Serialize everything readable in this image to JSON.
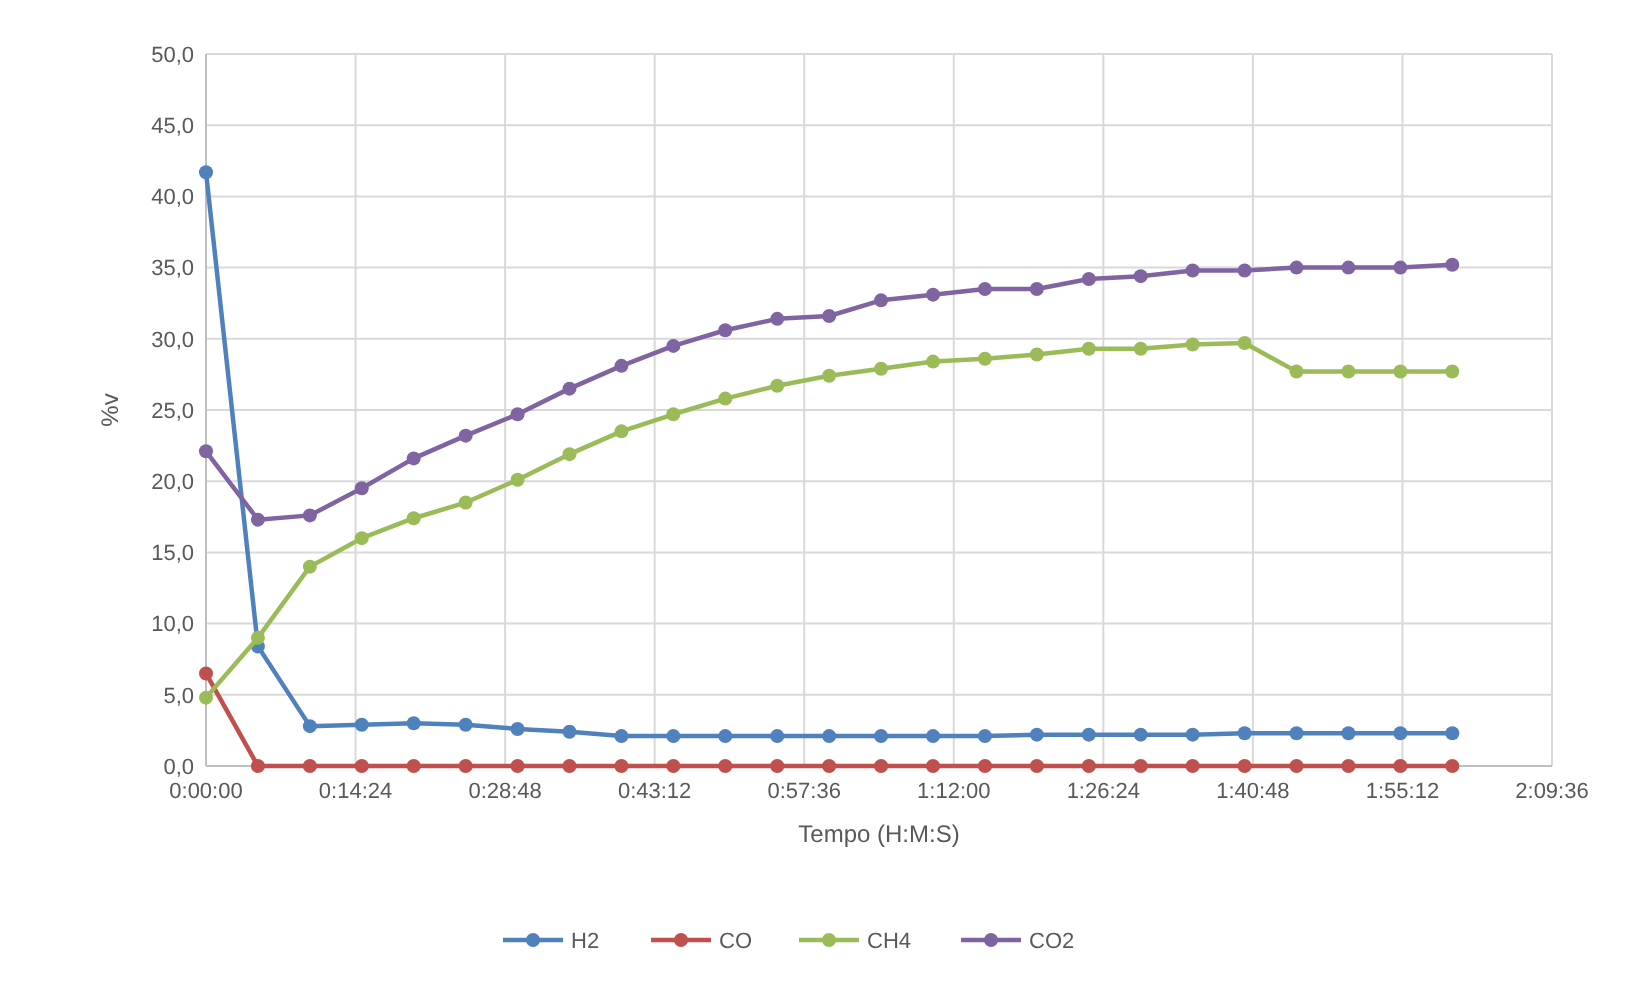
{
  "chart_data": {
    "type": "line",
    "xlabel": "Tempo (H:M:S)",
    "ylabel": "%v",
    "x": [
      0,
      0.0833,
      0.1667,
      0.25,
      0.3333,
      0.4167,
      0.5,
      0.5833,
      0.6667,
      0.75,
      0.8333,
      0.9167,
      1,
      1.0833,
      1.1667,
      1.25,
      1.3333,
      1.4167,
      1.5,
      1.5833,
      1.6667,
      1.75,
      1.8333,
      1.9167,
      2
    ],
    "series": [
      {
        "name": "H2",
        "color": "#4f81bd",
        "values": [
          41.7,
          8.4,
          2.8,
          2.9,
          3.0,
          2.9,
          2.6,
          2.4,
          2.1,
          2.1,
          2.1,
          2.1,
          2.1,
          2.1,
          2.1,
          2.1,
          2.2,
          2.2,
          2.2,
          2.2,
          2.3,
          2.3,
          2.3,
          2.3,
          2.3
        ]
      },
      {
        "name": "CO",
        "color": "#c0504d",
        "values": [
          6.5,
          0,
          0,
          0,
          0,
          0,
          0,
          0,
          0,
          0,
          0,
          0,
          0,
          0,
          0,
          0,
          0,
          0,
          0,
          0,
          0,
          0,
          0,
          0,
          0
        ]
      },
      {
        "name": "CH4",
        "color": "#9bbb59",
        "values": [
          4.8,
          9.0,
          14.0,
          16.0,
          17.4,
          18.5,
          20.1,
          21.9,
          23.5,
          24.7,
          25.8,
          26.7,
          27.4,
          27.9,
          28.4,
          28.6,
          28.9,
          29.3,
          29.3,
          29.6,
          29.7,
          27.7,
          27.7,
          27.7,
          27.7
        ]
      },
      {
        "name": "CO2",
        "color": "#8064a2",
        "values": [
          22.1,
          17.3,
          17.6,
          19.5,
          21.6,
          23.2,
          24.7,
          26.5,
          28.1,
          29.5,
          30.6,
          31.4,
          31.6,
          32.7,
          33.1,
          33.5,
          33.5,
          34.2,
          34.4,
          34.8,
          34.8,
          35.0,
          35.0,
          35.0,
          35.2
        ]
      }
    ],
    "xlim": [
      0,
      2.16
    ],
    "xticks": [
      {
        "value": 0,
        "label": "0:00:00"
      },
      {
        "value": 0.24,
        "label": "0:14:24"
      },
      {
        "value": 0.48,
        "label": "0:28:48"
      },
      {
        "value": 0.72,
        "label": "0:43:12"
      },
      {
        "value": 0.96,
        "label": "0:57:36"
      },
      {
        "value": 1.2,
        "label": "1:12:00"
      },
      {
        "value": 1.44,
        "label": "1:26:24"
      },
      {
        "value": 1.68,
        "label": "1:40:48"
      },
      {
        "value": 1.92,
        "label": "1:55:12"
      },
      {
        "value": 2.16,
        "label": "2:09:36"
      }
    ],
    "ylim": [
      0,
      50
    ],
    "yticks": [
      {
        "value": 0,
        "label": "0,0"
      },
      {
        "value": 5,
        "label": "5,0"
      },
      {
        "value": 10,
        "label": "10,0"
      },
      {
        "value": 15,
        "label": "15,0"
      },
      {
        "value": 20,
        "label": "20,0"
      },
      {
        "value": 25,
        "label": "25,0"
      },
      {
        "value": 30,
        "label": "30,0"
      },
      {
        "value": 35,
        "label": "35,0"
      },
      {
        "value": 40,
        "label": "40,0"
      },
      {
        "value": 45,
        "label": "45,0"
      },
      {
        "value": 50,
        "label": "50,0"
      }
    ],
    "grid": true,
    "legend": "bottom",
    "marker": "circle",
    "line_style": "solid"
  }
}
